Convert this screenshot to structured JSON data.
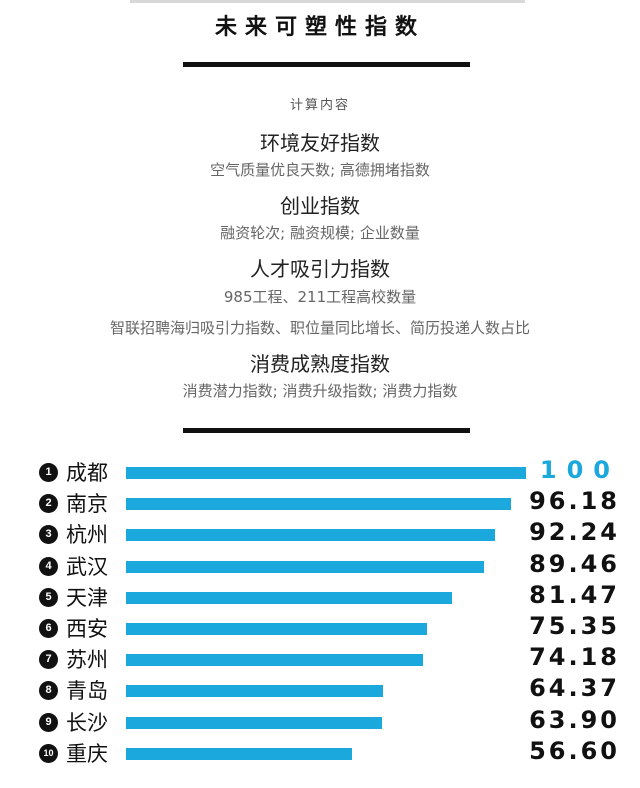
{
  "title": "未来可塑性指数",
  "content_header": "计算内容",
  "indices": [
    {
      "name": "环境友好指数",
      "desc": [
        "空气质量优良天数; 高德拥堵指数"
      ]
    },
    {
      "name": "创业指数",
      "desc": [
        "融资轮次; 融资规模; 企业数量"
      ]
    },
    {
      "name": "人才吸引力指数",
      "desc": [
        "985工程、211工程高校数量",
        "智联招聘海归吸引力指数、职位量同比增长、简历投递人数占比"
      ]
    },
    {
      "name": "消费成熟度指数",
      "desc": [
        "消费潜力指数; 消费升级指数; 消费力指数"
      ]
    }
  ],
  "chart_data": {
    "type": "bar",
    "orientation": "horizontal",
    "categories": [
      "成都",
      "南京",
      "杭州",
      "武汉",
      "天津",
      "西安",
      "苏州",
      "青岛",
      "长沙",
      "重庆"
    ],
    "ranks": [
      "1",
      "2",
      "3",
      "4",
      "5",
      "6",
      "7",
      "8",
      "9",
      "10"
    ],
    "values": [
      100,
      96.18,
      92.24,
      89.46,
      81.47,
      75.35,
      74.18,
      64.37,
      63.9,
      56.6
    ],
    "value_labels": [
      "100",
      "96.18",
      "92.24",
      "89.46",
      "81.47",
      "75.35",
      "74.18",
      "64.37",
      "63.90",
      "56.60"
    ],
    "bar_color": "#1ba8dd",
    "highlight_color": "#1ba8dd",
    "xlim": [
      0,
      100
    ]
  }
}
